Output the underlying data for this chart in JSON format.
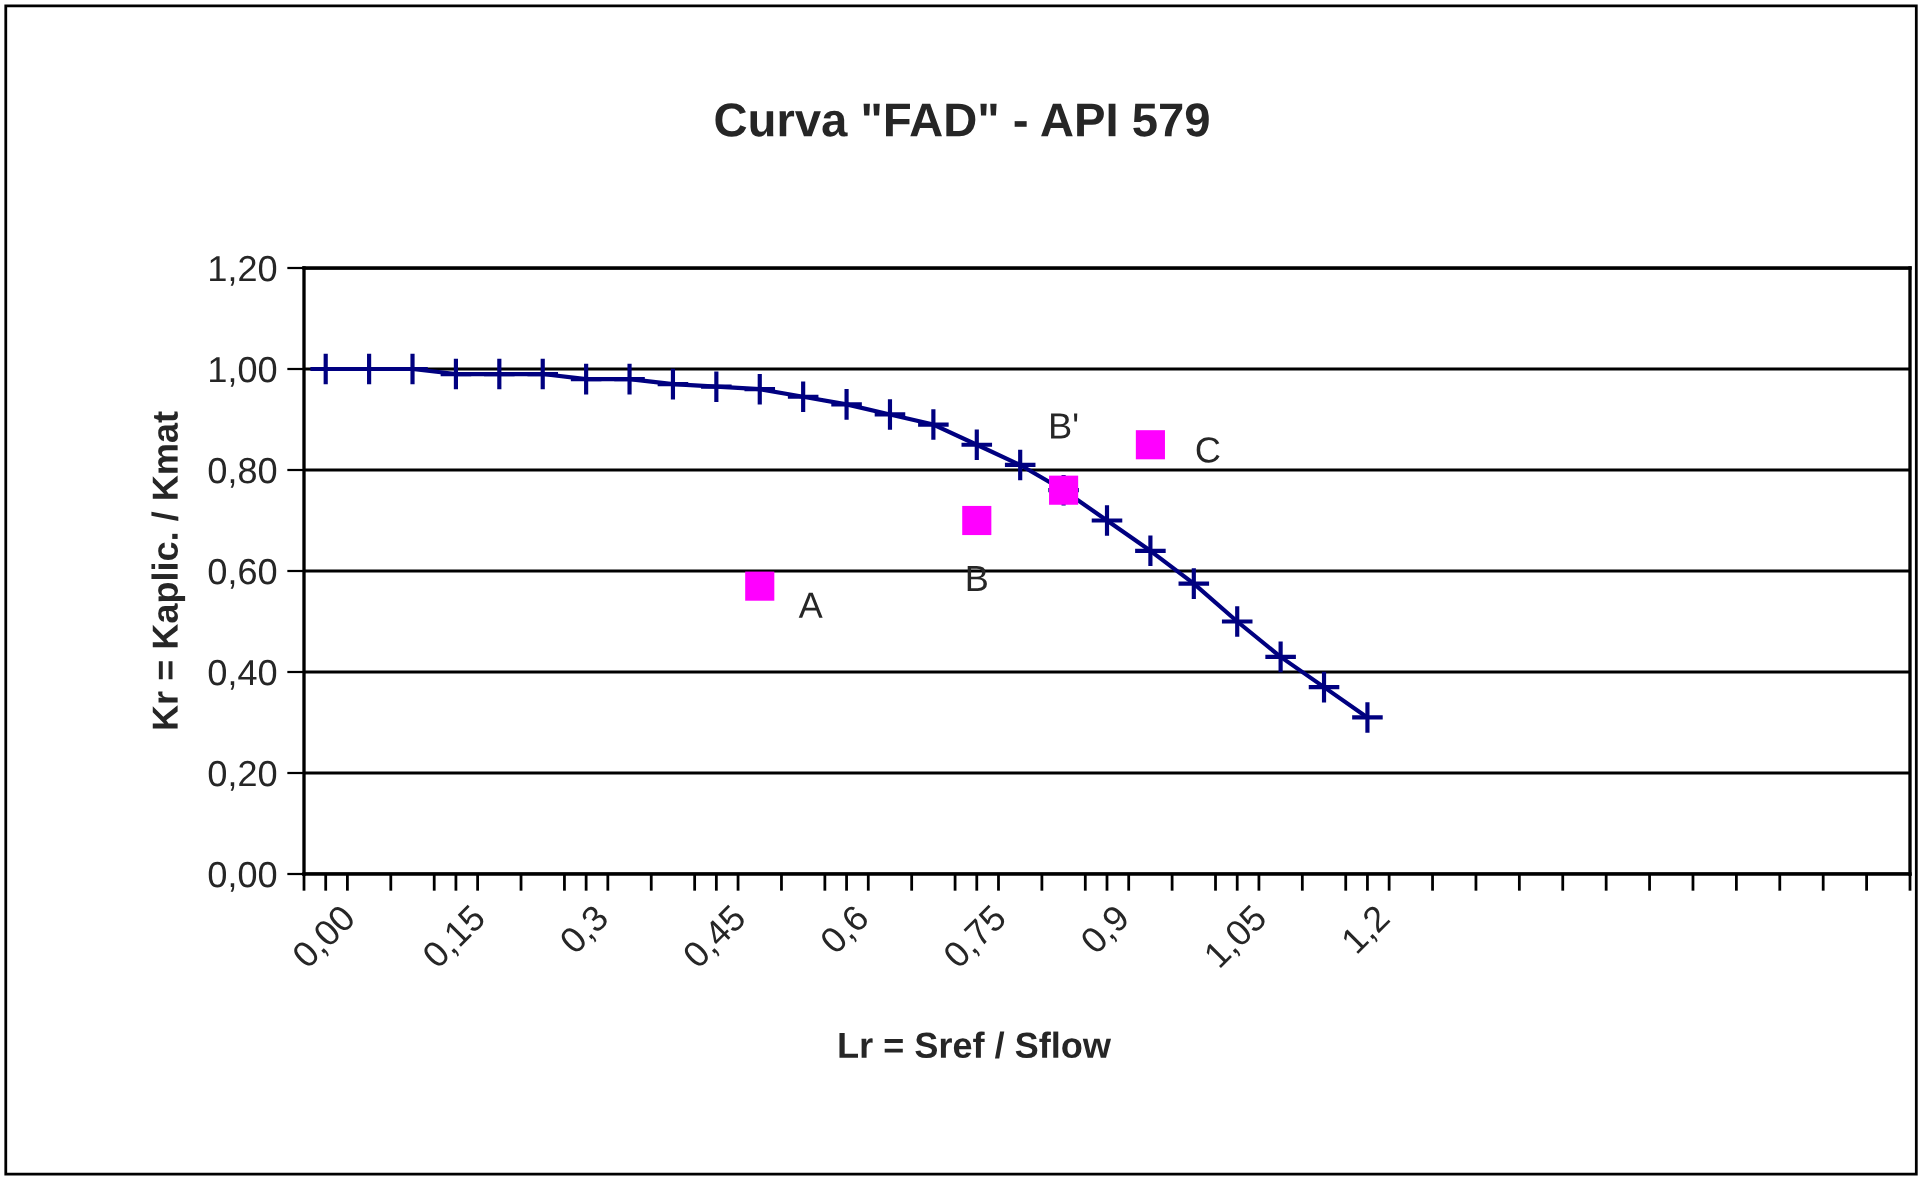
{
  "chart_data": {
    "type": "line",
    "title": "Curva \"FAD\" - API 579",
    "xlabel": "Lr = Sref / Sflow",
    "ylabel": "Kr = Kaplic. / Kmat",
    "x": [
      0.0,
      0.05,
      0.1,
      0.15,
      0.2,
      0.25,
      0.3,
      0.35,
      0.4,
      0.45,
      0.5,
      0.55,
      0.6,
      0.65,
      0.7,
      0.75,
      0.8,
      0.85,
      0.9,
      0.95,
      1.0,
      1.05,
      1.1,
      1.15,
      1.2
    ],
    "series": [
      {
        "color": "#000080",
        "marker": "cross",
        "values": [
          1.0,
          1.0,
          1.0,
          0.99,
          0.99,
          0.99,
          0.98,
          0.98,
          0.97,
          0.965,
          0.96,
          0.945,
          0.93,
          0.91,
          0.89,
          0.85,
          0.81,
          0.76,
          0.7,
          0.64,
          0.575,
          0.5,
          0.43,
          0.37,
          0.31
        ]
      },
      {
        "type": "scatter",
        "color": "#ff00ff",
        "marker": "square",
        "x": [
          0.5,
          0.75,
          0.85,
          0.95
        ],
        "values": [
          0.57,
          0.7,
          0.76,
          0.85
        ]
      }
    ],
    "annotations": [
      {
        "text": "A",
        "x": 0.5,
        "y": 0.57
      },
      {
        "text": "B",
        "x": 0.75,
        "y": 0.7
      },
      {
        "text": "B'",
        "x": 0.85,
        "y": 0.76
      },
      {
        "text": "C",
        "x": 0.95,
        "y": 0.85
      }
    ],
    "xlim": [
      -0.025,
      1.825
    ],
    "xticks": [
      {
        "value": -0.025,
        "label": null
      },
      {
        "value": 0.0,
        "label": "0,00"
      },
      {
        "value": 0.025,
        "label": null
      },
      {
        "value": 0.075,
        "label": null
      },
      {
        "value": 0.125,
        "label": null
      },
      {
        "value": 0.15,
        "label": "0,15"
      },
      {
        "value": 0.175,
        "label": null
      },
      {
        "value": 0.225,
        "label": null
      },
      {
        "value": 0.275,
        "label": null
      },
      {
        "value": 0.3,
        "label": "0,3"
      },
      {
        "value": 0.325,
        "label": null
      },
      {
        "value": 0.375,
        "label": null
      },
      {
        "value": 0.425,
        "label": null
      },
      {
        "value": 0.45,
        "label": "0,45"
      },
      {
        "value": 0.475,
        "label": null
      },
      {
        "value": 0.525,
        "label": null
      },
      {
        "value": 0.575,
        "label": null
      },
      {
        "value": 0.6,
        "label": "0,6"
      },
      {
        "value": 0.625,
        "label": null
      },
      {
        "value": 0.675,
        "label": null
      },
      {
        "value": 0.725,
        "label": null
      },
      {
        "value": 0.75,
        "label": "0,75"
      },
      {
        "value": 0.775,
        "label": null
      },
      {
        "value": 0.825,
        "label": null
      },
      {
        "value": 0.875,
        "label": null
      },
      {
        "value": 0.9,
        "label": "0,9"
      },
      {
        "value": 0.925,
        "label": null
      },
      {
        "value": 0.975,
        "label": null
      },
      {
        "value": 1.025,
        "label": null
      },
      {
        "value": 1.05,
        "label": "1,05"
      },
      {
        "value": 1.075,
        "label": null
      },
      {
        "value": 1.125,
        "label": null
      },
      {
        "value": 1.175,
        "label": null
      },
      {
        "value": 1.2,
        "label": "1,2"
      },
      {
        "value": 1.225,
        "label": null
      },
      {
        "value": 1.275,
        "label": null
      },
      {
        "value": 1.325,
        "label": null
      },
      {
        "value": 1.375,
        "label": null
      },
      {
        "value": 1.425,
        "label": null
      },
      {
        "value": 1.475,
        "label": null
      },
      {
        "value": 1.525,
        "label": null
      },
      {
        "value": 1.575,
        "label": null
      },
      {
        "value": 1.625,
        "label": null
      },
      {
        "value": 1.675,
        "label": null
      },
      {
        "value": 1.725,
        "label": null
      },
      {
        "value": 1.775,
        "label": null
      },
      {
        "value": 1.825,
        "label": null
      }
    ],
    "ylim": [
      0,
      1.2
    ],
    "yticks": [
      {
        "value": 0,
        "label": "0,00"
      },
      {
        "value": 0.2,
        "label": "0,20"
      },
      {
        "value": 0.4,
        "label": "0,40"
      },
      {
        "value": 0.6,
        "label": "0,60"
      },
      {
        "value": 0.8,
        "label": "0,80"
      },
      {
        "value": 1.0,
        "label": "1,00"
      },
      {
        "value": 1.2,
        "label": "1,20"
      }
    ],
    "grid": "y"
  }
}
